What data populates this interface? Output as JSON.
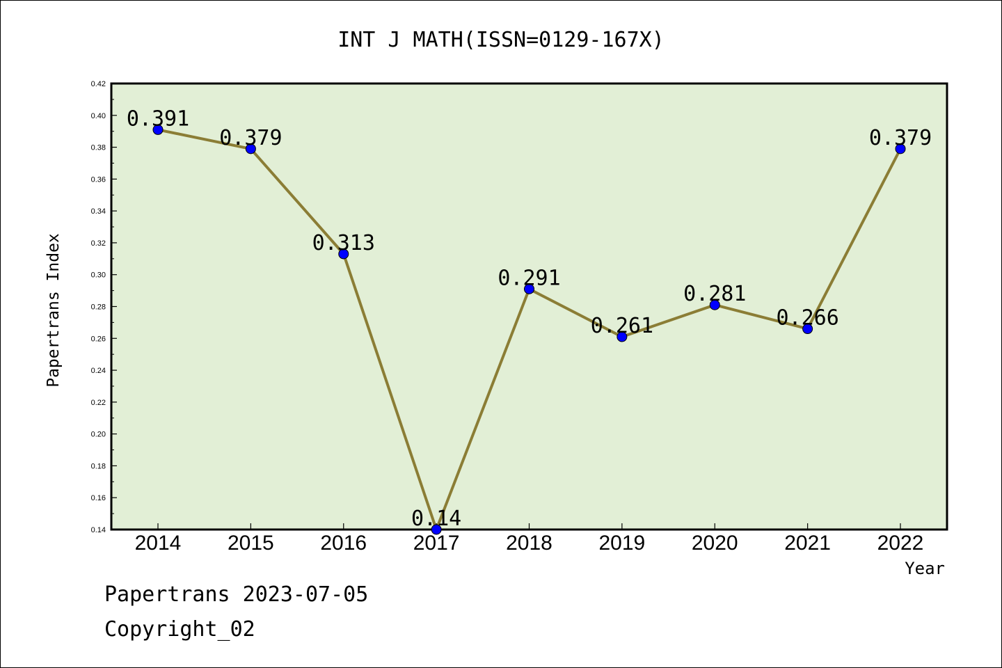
{
  "chart_data": {
    "type": "line",
    "title": "INT J MATH(ISSN=0129-167X)",
    "xlabel": "Year",
    "ylabel": "Papertrans Index",
    "categories": [
      "2014",
      "2015",
      "2016",
      "2017",
      "2018",
      "2019",
      "2020",
      "2021",
      "2022"
    ],
    "values": [
      0.391,
      0.379,
      0.313,
      0.14,
      0.291,
      0.261,
      0.281,
      0.266,
      0.379
    ],
    "data_labels": [
      "0.391",
      "0.379",
      "0.313",
      "0.14",
      "0.291",
      "0.261",
      "0.281",
      "0.266",
      "0.379"
    ],
    "yticks": [
      "0.14",
      "0.16",
      "0.18",
      "0.20",
      "0.22",
      "0.24",
      "0.26",
      "0.28",
      "0.30",
      "0.32",
      "0.34",
      "0.36",
      "0.38",
      "0.40",
      "0.42"
    ],
    "ylim": [
      0.14,
      0.42
    ],
    "grid": false,
    "colors": {
      "plot_background": "#e2efd6",
      "line": "#8b7d35",
      "marker": "#0000ff",
      "axes": "#000000"
    }
  },
  "footer": {
    "line1": "Papertrans 2023-07-05",
    "line2": "Copyright_02"
  }
}
